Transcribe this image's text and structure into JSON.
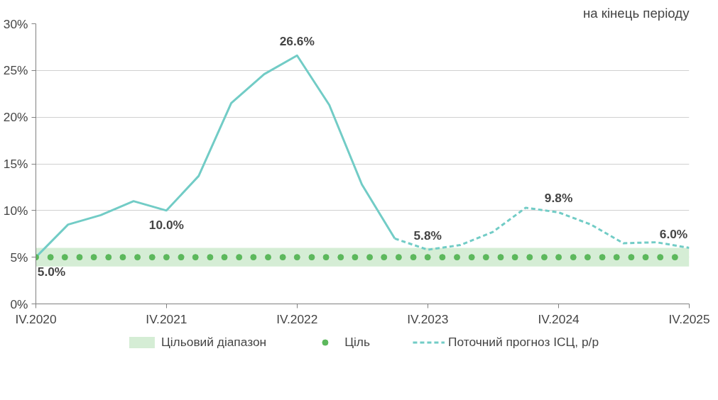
{
  "chart_data": {
    "type": "line",
    "subtitle": "на кінець періоду",
    "xlim": [
      "2020-12-31",
      "2025-12-31"
    ],
    "xticks": [
      {
        "value": "2020-12-31",
        "label": "IV.2020"
      },
      {
        "value": "2021-12-31",
        "label": "IV.2021"
      },
      {
        "value": "2022-12-31",
        "label": "IV.2022"
      },
      {
        "value": "2023-12-31",
        "label": "IV.2023"
      },
      {
        "value": "2024-12-31",
        "label": "IV.2024"
      },
      {
        "value": "2025-12-31",
        "label": "IV.2025"
      }
    ],
    "ylim": [
      0,
      30
    ],
    "yticks": [
      {
        "value": 0,
        "label": "0%"
      },
      {
        "value": 5,
        "label": "5%"
      },
      {
        "value": 10,
        "label": "10%"
      },
      {
        "value": 15,
        "label": "15%"
      },
      {
        "value": 20,
        "label": "20%"
      },
      {
        "value": 25,
        "label": "25%"
      },
      {
        "value": 30,
        "label": "30%"
      }
    ],
    "grid": "y",
    "legend": "bottom",
    "bands": [
      {
        "axis": "y",
        "from": 4,
        "to": 6,
        "label": "Цільовий діапазон",
        "color": "#d5edd5"
      }
    ],
    "series": [
      {
        "color": "#72ccc6",
        "line_style": "solid",
        "x": [
          "2020-12-31",
          "2021-03-31",
          "2021-06-30",
          "2021-09-30",
          "2021-12-31",
          "2022-03-31",
          "2022-06-30",
          "2022-09-30",
          "2022-12-31",
          "2023-03-31",
          "2023-06-30",
          "2023-09-30"
        ],
        "values": [
          5.0,
          8.5,
          9.5,
          11.0,
          10.0,
          13.7,
          21.5,
          24.6,
          26.6,
          21.3,
          12.8,
          7.0
        ]
      },
      {
        "name": "Поточний прогноз ІСЦ, р/р",
        "color": "#72ccc6",
        "line_style": "dashed",
        "x": [
          "2023-09-30",
          "2023-12-31",
          "2024-03-31",
          "2024-06-30",
          "2024-09-30",
          "2024-12-31",
          "2025-03-31",
          "2025-06-30",
          "2025-09-30",
          "2025-12-31"
        ],
        "values": [
          7.0,
          5.8,
          6.3,
          7.7,
          10.3,
          9.8,
          8.5,
          6.5,
          6.6,
          6.0
        ]
      },
      {
        "type": "scatter",
        "name": "Ціль",
        "color": "#5cb85c",
        "marker": "circle",
        "x": [
          "2020-12-31",
          "2021-02-10",
          "2021-03-22",
          "2021-05-02",
          "2021-06-11",
          "2021-07-22",
          "2021-08-31",
          "2021-10-11",
          "2021-11-21",
          "2021-12-31",
          "2022-02-10",
          "2022-03-22",
          "2022-05-02",
          "2022-06-11",
          "2022-07-22",
          "2022-08-31",
          "2022-10-11",
          "2022-11-21",
          "2022-12-31",
          "2023-02-10",
          "2023-03-22",
          "2023-05-02",
          "2023-06-11",
          "2023-07-22",
          "2023-08-31",
          "2023-10-11",
          "2023-11-21",
          "2023-12-31",
          "2024-02-10",
          "2024-03-22",
          "2024-05-02",
          "2024-06-11",
          "2024-07-22",
          "2024-08-31",
          "2024-10-11",
          "2024-11-21",
          "2024-12-31",
          "2025-02-10",
          "2025-03-22",
          "2025-05-02",
          "2025-06-11",
          "2025-07-22",
          "2025-08-31",
          "2025-10-11",
          "2025-11-21"
        ],
        "values": [
          5,
          5,
          5,
          5,
          5,
          5,
          5,
          5,
          5,
          5,
          5,
          5,
          5,
          5,
          5,
          5,
          5,
          5,
          5,
          5,
          5,
          5,
          5,
          5,
          5,
          5,
          5,
          5,
          5,
          5,
          5,
          5,
          5,
          5,
          5,
          5,
          5,
          5,
          5,
          5,
          5,
          5,
          5,
          5,
          5
        ]
      }
    ],
    "annotations": [
      {
        "text": "5.0%",
        "x": "2020-12-31",
        "y": 5.0
      },
      {
        "text": "10.0%",
        "x": "2021-12-31",
        "y": 10.0
      },
      {
        "text": "26.6%",
        "x": "2022-12-31",
        "y": 26.6
      },
      {
        "text": "5.8%",
        "x": "2023-12-31",
        "y": 5.8
      },
      {
        "text": "9.8%",
        "x": "2024-12-31",
        "y": 9.8
      },
      {
        "text": "6.0%",
        "x": "2025-12-31",
        "y": 6.0
      }
    ]
  }
}
